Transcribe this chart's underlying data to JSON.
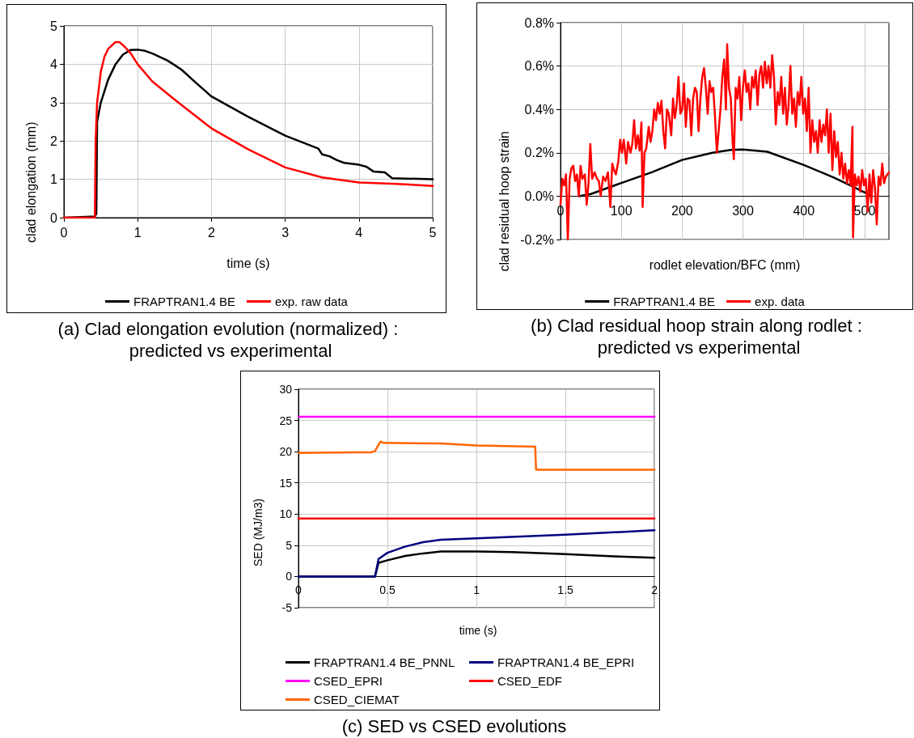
{
  "chart_data": [
    {
      "type": "line",
      "title": "(a) Clad elongation evolution (normalized) : predicted vs experimental",
      "xlabel": "time (s)",
      "ylabel": "clad elongation (mm)",
      "xlim": [
        0,
        5
      ],
      "xticks": [
        0,
        1,
        2,
        3,
        4,
        5
      ],
      "ylim": [
        0,
        5
      ],
      "yticks": [
        0,
        1,
        2,
        3,
        4,
        5
      ],
      "grid": true,
      "legend": "bottom",
      "series": [
        {
          "name": "FRAPTRAN1.4 BE",
          "color": "#000000",
          "x": [
            0,
            0.3,
            0.42,
            0.44,
            0.45,
            0.5,
            0.6,
            0.7,
            0.8,
            0.9,
            1.0,
            1.1,
            1.2,
            1.4,
            1.5,
            1.6,
            1.8,
            2.0,
            2.5,
            3.0,
            3.45,
            3.5,
            3.6,
            3.7,
            3.8,
            4.0,
            4.1,
            4.2,
            4.35,
            4.45,
            5.0
          ],
          "values": [
            0,
            0.02,
            0.03,
            0.1,
            2.5,
            3.0,
            3.6,
            4.0,
            4.25,
            4.37,
            4.38,
            4.35,
            4.28,
            4.1,
            3.98,
            3.85,
            3.5,
            3.16,
            2.63,
            2.14,
            1.8,
            1.65,
            1.6,
            1.5,
            1.43,
            1.38,
            1.33,
            1.2,
            1.18,
            1.03,
            1.0
          ]
        },
        {
          "name": "exp. raw data",
          "color": "#ff0000",
          "x": [
            0,
            0.42,
            0.43,
            0.45,
            0.5,
            0.55,
            0.6,
            0.7,
            0.75,
            0.8,
            0.9,
            1.0,
            1.2,
            1.5,
            2.0,
            2.5,
            3.0,
            3.5,
            4.0,
            4.5,
            5.0
          ],
          "values": [
            0,
            0,
            2.0,
            3.0,
            3.8,
            4.2,
            4.4,
            4.58,
            4.58,
            4.5,
            4.3,
            4.0,
            3.55,
            3.08,
            2.33,
            1.78,
            1.31,
            1.05,
            0.92,
            0.88,
            0.83
          ]
        }
      ]
    },
    {
      "type": "line",
      "title": "(b) Clad residual hoop strain along rodlet : predicted vs experimental",
      "xlabel": "rodlet elevation/BFC (mm)",
      "ylabel": "clad residual hoop strain",
      "xlim": [
        0,
        540
      ],
      "xticks": [
        0,
        100,
        200,
        300,
        400,
        500
      ],
      "ylim": [
        -0.2,
        0.8
      ],
      "yticks": [
        {
          "value": -0.2,
          "label": "-0.2%"
        },
        {
          "value": 0,
          "label": "0.0%"
        },
        {
          "value": 0.2,
          "label": "0.2%"
        },
        {
          "value": 0.4,
          "label": "0.4%"
        },
        {
          "value": 0.6,
          "label": "0.6%"
        },
        {
          "value": 0.8,
          "label": "0.8%"
        }
      ],
      "grid": true,
      "legend": "bottom",
      "series": [
        {
          "name": "FRAPTRAN1.4 BE",
          "color": "#000000",
          "x": [
            30,
            50,
            100,
            150,
            200,
            250,
            280,
            300,
            340,
            400,
            450,
            480,
            505,
            510
          ],
          "values": [
            0,
            0.01,
            0.061,
            0.11,
            0.167,
            0.2,
            0.213,
            0.215,
            0.205,
            0.144,
            0.085,
            0.045,
            0.01,
            0
          ]
        },
        {
          "name": "exp. data",
          "color": "#ff0000",
          "x": [
            0,
            3,
            6,
            9,
            12,
            15,
            18,
            21,
            24,
            27,
            30,
            33,
            36,
            40,
            43,
            46,
            49,
            52,
            56,
            60,
            63,
            66,
            70,
            74,
            78,
            82,
            85,
            88,
            91,
            95,
            98,
            101,
            104,
            108,
            111,
            115,
            118,
            121,
            124,
            127,
            130,
            133,
            135,
            138,
            141,
            145,
            148,
            151,
            154,
            157,
            160,
            163,
            166,
            169,
            172,
            175,
            178,
            182,
            185,
            188,
            191,
            194,
            197,
            200,
            203,
            206,
            209,
            212,
            215,
            218,
            221,
            224,
            227,
            230,
            233,
            236,
            239,
            242,
            245,
            248,
            251,
            254,
            257,
            260,
            263,
            266,
            269,
            272,
            274,
            277,
            280,
            283,
            285,
            288,
            291,
            294,
            297,
            300,
            303,
            306,
            309,
            312,
            315,
            318,
            321,
            324,
            327,
            330,
            333,
            336,
            339,
            342,
            345,
            348,
            351,
            354,
            357,
            360,
            363,
            366,
            369,
            372,
            375,
            378,
            381,
            384,
            387,
            390,
            393,
            396,
            399,
            402,
            405,
            408,
            411,
            414,
            417,
            420,
            423,
            426,
            429,
            432,
            435,
            438,
            441,
            444,
            447,
            450,
            453,
            456,
            459,
            462,
            465,
            468,
            471,
            474,
            477,
            480,
            481,
            484,
            487,
            490,
            493,
            496,
            499,
            502,
            505,
            508,
            511,
            514,
            517,
            520,
            523,
            526,
            529,
            532,
            535,
            540
          ],
          "values": [
            -0.04,
            0.08,
            0.05,
            0.1,
            -0.2,
            0.08,
            0.13,
            0.14,
            0.07,
            0.1,
            0.0,
            0.14,
            0.08,
            0.1,
            -0.04,
            0.06,
            0.24,
            0.08,
            0.11,
            0.08,
            0.07,
            0.0,
            0.09,
            0.07,
            0.11,
            -0.05,
            0.15,
            0.12,
            0.1,
            0.16,
            0.26,
            0.2,
            0.26,
            0.15,
            0.25,
            0.2,
            0.24,
            0.35,
            0.22,
            0.28,
            0.21,
            0.34,
            -0.05,
            0.2,
            0.22,
            0.32,
            0.25,
            0.3,
            0.4,
            0.35,
            0.43,
            0.38,
            0.44,
            0.3,
            0.22,
            0.4,
            0.38,
            0.28,
            0.45,
            0.36,
            0.42,
            0.55,
            0.38,
            0.4,
            0.52,
            0.32,
            0.45,
            0.44,
            0.28,
            0.45,
            0.5,
            0.48,
            0.3,
            0.45,
            0.55,
            0.59,
            0.5,
            0.38,
            0.53,
            0.48,
            0.5,
            0.37,
            0.2,
            0.3,
            0.4,
            0.55,
            0.63,
            0.4,
            0.7,
            0.5,
            0.45,
            0.25,
            0.17,
            0.5,
            0.45,
            0.55,
            0.35,
            0.5,
            0.58,
            0.48,
            0.52,
            0.4,
            0.55,
            0.5,
            0.58,
            0.42,
            0.56,
            0.6,
            0.5,
            0.62,
            0.52,
            0.6,
            0.5,
            0.65,
            0.55,
            0.33,
            0.48,
            0.42,
            0.55,
            0.38,
            0.5,
            0.33,
            0.42,
            0.6,
            0.38,
            0.45,
            0.32,
            0.48,
            0.42,
            0.55,
            0.38,
            0.45,
            0.3,
            0.5,
            0.2,
            0.35,
            0.25,
            0.3,
            0.2,
            0.35,
            0.25,
            0.33,
            0.28,
            0.4,
            0.2,
            0.38,
            0.12,
            0.3,
            0.18,
            0.25,
            0.1,
            0.2,
            0.08,
            0.15,
            0.06,
            0.12,
            0.05,
            0.32,
            -0.19,
            0.1,
            0.05,
            0.09,
            0.02,
            0.12,
            0.05,
            0.08,
            -0.07,
            0.1,
            -0.03,
            0.12,
            0.04,
            -0.13,
            0.09,
            0.05,
            0.15,
            0.06,
            0.09,
            0.11
          ]
        }
      ]
    },
    {
      "type": "line",
      "title": "(c) SED vs CSED evolutions",
      "xlabel": "time (s)",
      "ylabel": "SED (MJ/m3)",
      "xlim": [
        0,
        2
      ],
      "xticks": [
        0,
        0.5,
        1,
        1.5,
        2
      ],
      "ylim": [
        -5,
        30
      ],
      "yticks": [
        -5,
        0,
        5,
        10,
        15,
        20,
        25,
        30
      ],
      "grid": true,
      "legend": "bottom",
      "series": [
        {
          "name": "FRAPTRAN1.4 BE_PNNL",
          "color": "#000000",
          "x": [
            0,
            0.43,
            0.45,
            0.5,
            0.6,
            0.7,
            0.8,
            1.0,
            1.2,
            1.5,
            1.8,
            2.0
          ],
          "values": [
            0,
            0,
            2.2,
            2.6,
            3.3,
            3.7,
            4.0,
            4.0,
            3.9,
            3.6,
            3.2,
            3.0
          ]
        },
        {
          "name": "FRAPTRAN1.4 BE_EPRI",
          "color": "#000080",
          "x": [
            0,
            0.43,
            0.45,
            0.5,
            0.6,
            0.7,
            0.8,
            1.0,
            1.5,
            2.0
          ],
          "values": [
            0,
            0,
            2.8,
            3.8,
            4.8,
            5.5,
            5.9,
            6.1,
            6.7,
            7.4
          ]
        },
        {
          "name": "CSED_EPRI",
          "color": "#ff00ff",
          "x": [
            0,
            2
          ],
          "values": [
            25.6,
            25.6
          ]
        },
        {
          "name": "CSED_EDF",
          "color": "#ff0000",
          "x": [
            0,
            2
          ],
          "values": [
            9.3,
            9.3
          ]
        },
        {
          "name": "CSED_CIEMAT",
          "color": "#ff6600",
          "x": [
            0,
            0.3,
            0.41,
            0.43,
            0.46,
            0.48,
            0.8,
            1.0,
            1.33,
            1.335,
            2.0
          ],
          "values": [
            19.8,
            19.9,
            19.9,
            20.1,
            21.6,
            21.4,
            21.3,
            21.0,
            20.8,
            17.1,
            17.1
          ]
        }
      ]
    }
  ]
}
